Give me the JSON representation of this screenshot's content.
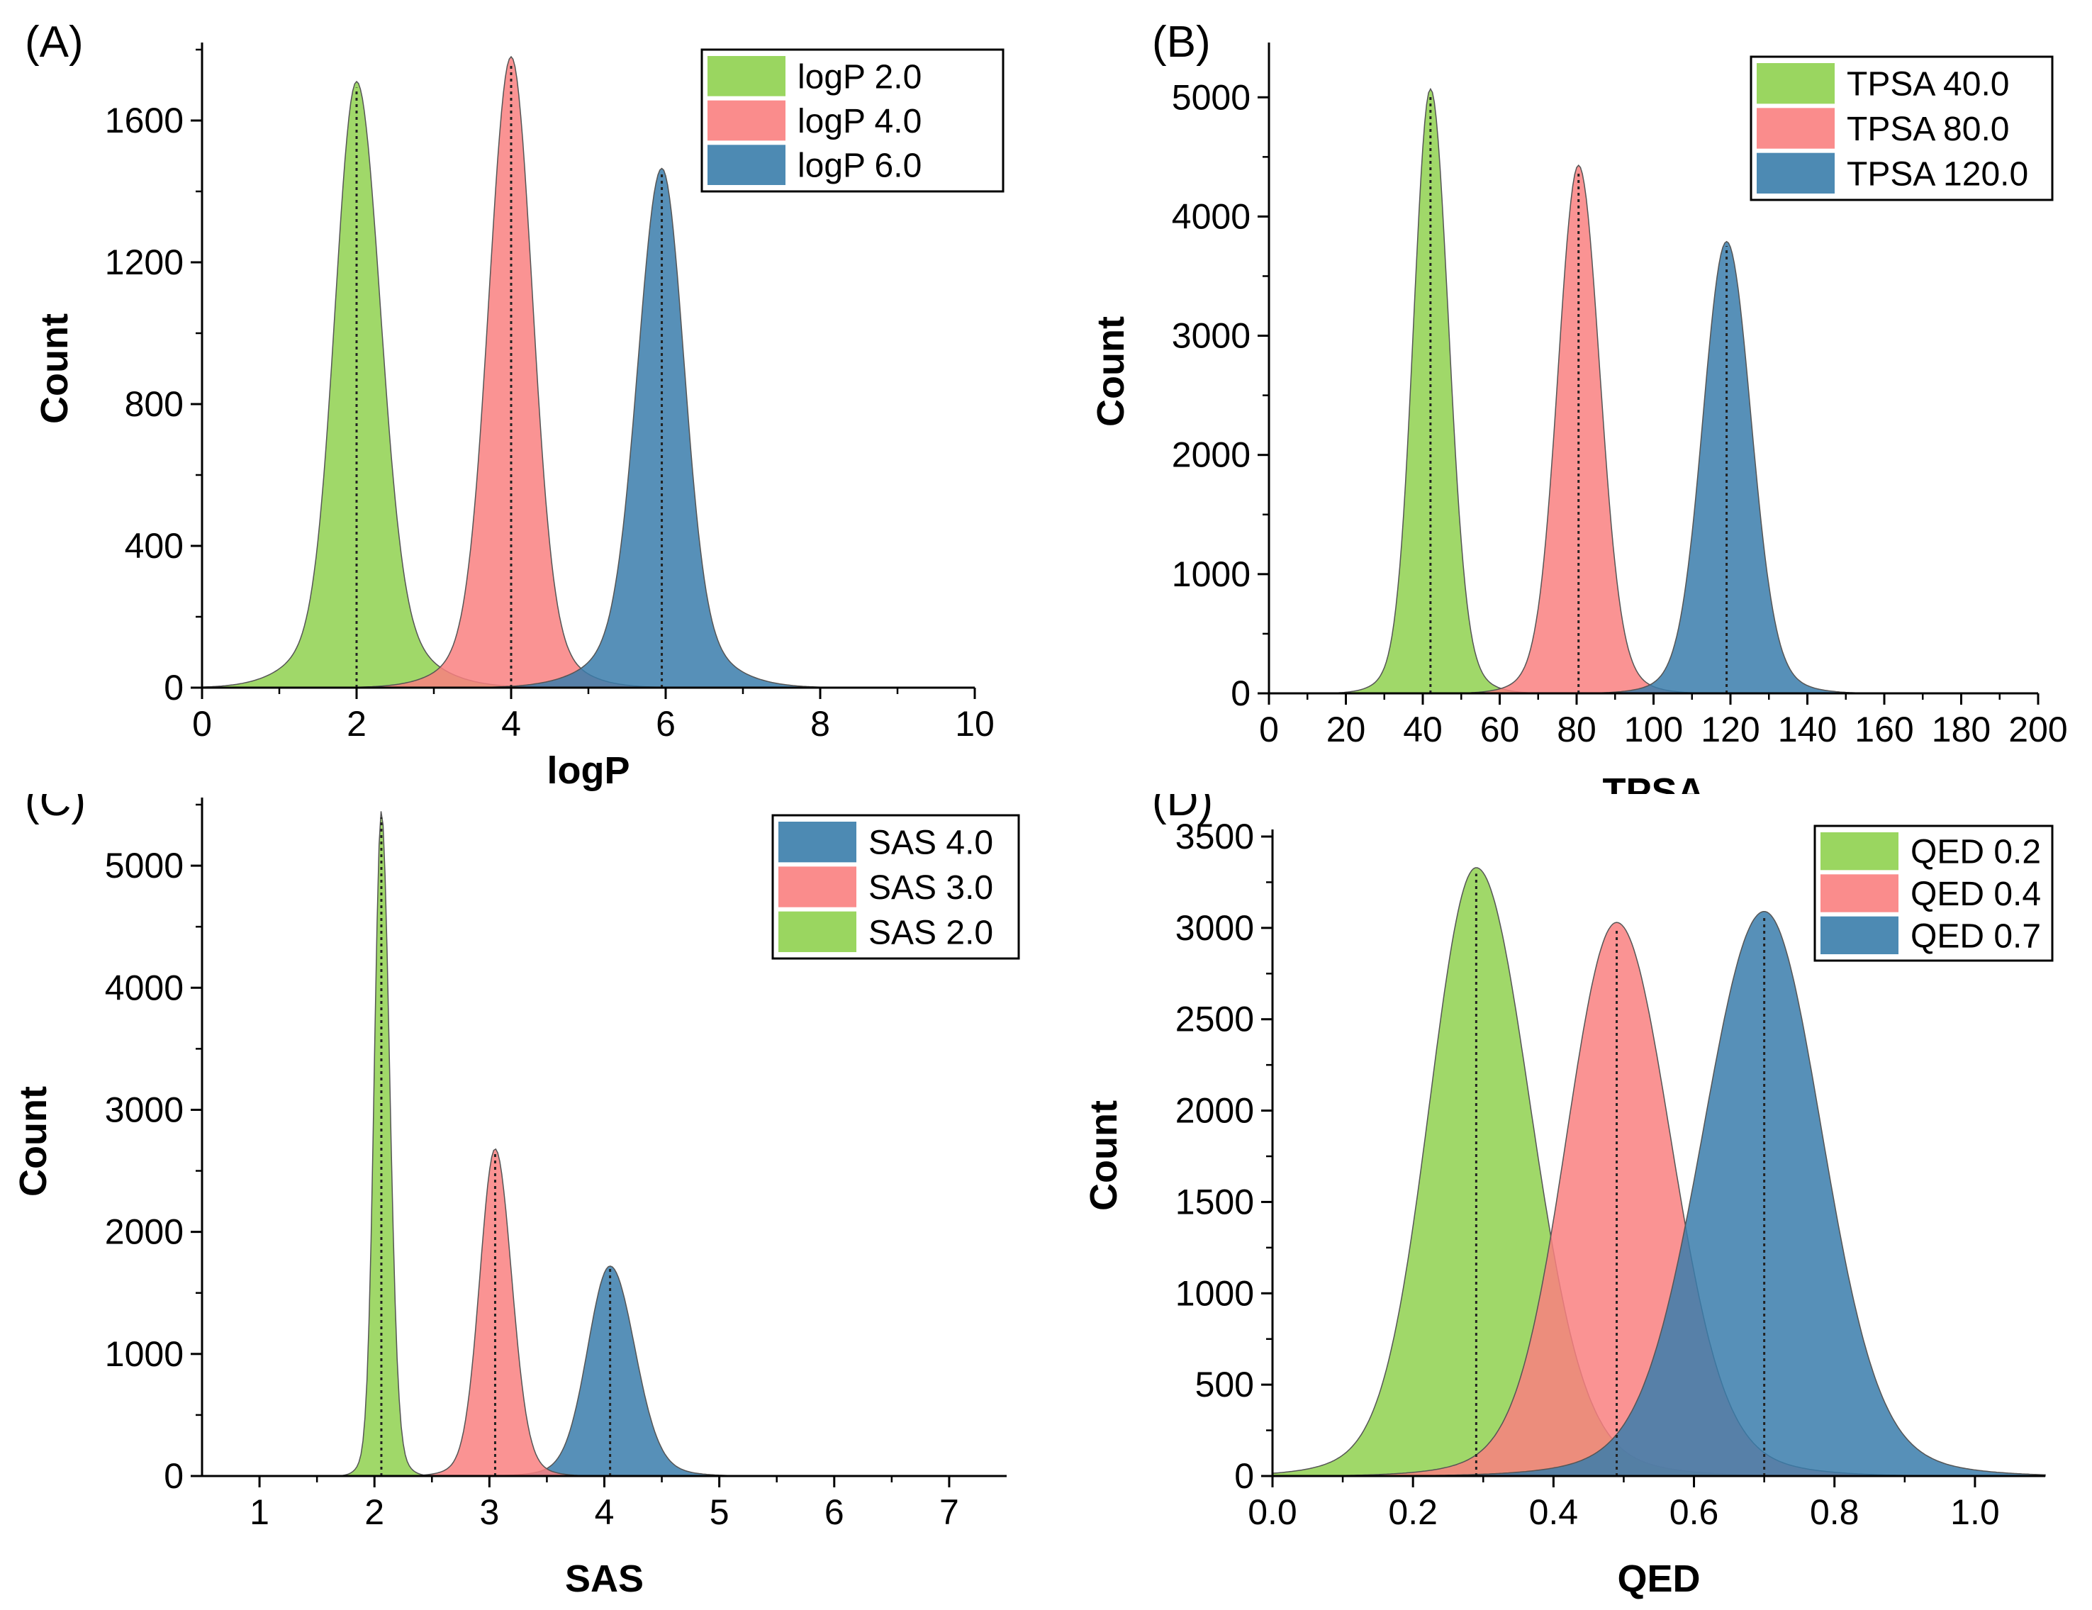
{
  "chart_data": [
    {
      "panel": "(A)",
      "type": "area",
      "title": "",
      "xlabel": "logP",
      "ylabel": "Count",
      "xlim": [
        0,
        10
      ],
      "ylim": [
        0,
        1800
      ],
      "xticks": [
        0,
        2,
        4,
        6,
        8,
        10
      ],
      "yticks": [
        0,
        400,
        800,
        1200,
        1600
      ],
      "xtick_labels": [
        "0",
        "2",
        "4",
        "6",
        "8",
        "10"
      ],
      "ytick_labels": [
        "0",
        "400",
        "800",
        "1200",
        "1600"
      ],
      "legend_position": "top-right",
      "series": [
        {
          "name": "logP 2.0",
          "color": "#8fd14f",
          "peak_x": 2.0,
          "peak_y": 1710,
          "sigma_left": 0.27,
          "sigma_right": 0.3,
          "shoulder": 0.06
        },
        {
          "name": "logP 4.0",
          "color": "#f98080",
          "peak_x": 4.0,
          "peak_y": 1780,
          "sigma_left": 0.28,
          "sigma_right": 0.27,
          "shoulder": 0.03
        },
        {
          "name": "logP 6.0",
          "color": "#3a7dab",
          "peak_x": 5.95,
          "peak_y": 1465,
          "sigma_left": 0.3,
          "sigma_right": 0.28,
          "shoulder": 0.06
        }
      ]
    },
    {
      "panel": "(B)",
      "type": "area",
      "title": "",
      "xlabel": "TPSA",
      "ylabel": "Count",
      "xlim": [
        0,
        200
      ],
      "ylim": [
        0,
        5400
      ],
      "xticks": [
        0,
        20,
        40,
        60,
        80,
        100,
        120,
        140,
        160,
        180,
        200
      ],
      "yticks": [
        0,
        1000,
        2000,
        3000,
        4000,
        5000
      ],
      "xtick_labels": [
        "0",
        "20",
        "40",
        "60",
        "80",
        "100",
        "120",
        "140",
        "160",
        "180",
        "200"
      ],
      "ytick_labels": [
        "0",
        "1000",
        "2000",
        "3000",
        "4000",
        "5000"
      ],
      "legend_position": "top-right",
      "series": [
        {
          "name": "TPSA 40.0",
          "color": "#8fd14f",
          "peak_x": 42,
          "peak_y": 5070,
          "sigma_left": 4.3,
          "sigma_right": 4.6,
          "shoulder": 0.0
        },
        {
          "name": "TPSA 80.0",
          "color": "#f98080",
          "peak_x": 80.5,
          "peak_y": 4430,
          "sigma_left": 5.2,
          "sigma_right": 5.4,
          "shoulder": 0.0
        },
        {
          "name": "TPSA 120.0",
          "color": "#3a7dab",
          "peak_x": 119,
          "peak_y": 3790,
          "sigma_left": 6.0,
          "sigma_right": 6.2,
          "shoulder": 0.0
        }
      ]
    },
    {
      "panel": "(C)",
      "type": "area",
      "title": "",
      "xlabel": "SAS",
      "ylabel": "Count",
      "xlim": [
        0.5,
        7.5
      ],
      "ylim": [
        0,
        5500
      ],
      "xticks": [
        1,
        2,
        3,
        4,
        5,
        6,
        7
      ],
      "yticks": [
        0,
        1000,
        2000,
        3000,
        4000,
        5000
      ],
      "xtick_labels": [
        "1",
        "2",
        "3",
        "4",
        "5",
        "6",
        "7"
      ],
      "ytick_labels": [
        "0",
        "1000",
        "2000",
        "3000",
        "4000",
        "5000"
      ],
      "legend_position": "top-right",
      "series": [
        {
          "name": "SAS 4.0",
          "color": "#3a7dab",
          "peak_x": 4.05,
          "peak_y": 1720,
          "sigma_left": 0.19,
          "sigma_right": 0.21,
          "shoulder": 0.0
        },
        {
          "name": "SAS 3.0",
          "color": "#f98080",
          "peak_x": 3.05,
          "peak_y": 2680,
          "sigma_left": 0.13,
          "sigma_right": 0.14,
          "shoulder": 0.0
        },
        {
          "name": "SAS 2.0",
          "color": "#8fd14f",
          "peak_x": 2.06,
          "peak_y": 5450,
          "sigma_left": 0.06,
          "sigma_right": 0.07,
          "shoulder": 0.0
        }
      ]
    },
    {
      "panel": "(D)",
      "type": "area",
      "title": "",
      "xlabel": "QED",
      "ylabel": "Count",
      "xlim": [
        0.0,
        1.1
      ],
      "ylim": [
        0,
        3500
      ],
      "xticks": [
        0.0,
        0.2,
        0.4,
        0.6,
        0.8,
        1.0
      ],
      "yticks": [
        0,
        500,
        1000,
        1500,
        2000,
        2500,
        3000,
        3500
      ],
      "xtick_labels": [
        "0.0",
        "0.2",
        "0.4",
        "0.6",
        "0.8",
        "1.0"
      ],
      "ytick_labels": [
        "0",
        "500",
        "1000",
        "1500",
        "2000",
        "2500",
        "3000",
        "3500"
      ],
      "legend_position": "top-right",
      "series": [
        {
          "name": "QED 0.2",
          "color": "#8fd14f",
          "peak_x": 0.29,
          "peak_y": 3330,
          "sigma_left": 0.065,
          "sigma_right": 0.075,
          "shoulder": 0.0
        },
        {
          "name": "QED 0.4",
          "color": "#f98080",
          "peak_x": 0.49,
          "peak_y": 3030,
          "sigma_left": 0.07,
          "sigma_right": 0.075,
          "shoulder": 0.0
        },
        {
          "name": "QED 0.7",
          "color": "#3a7dab",
          "peak_x": 0.7,
          "peak_y": 3090,
          "sigma_left": 0.085,
          "sigma_right": 0.08,
          "shoulder": 0.0
        }
      ]
    }
  ]
}
